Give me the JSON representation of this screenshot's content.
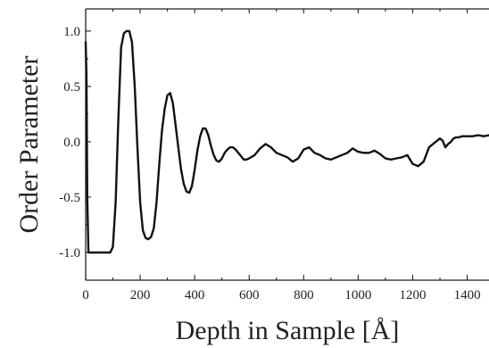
{
  "chart_data": {
    "type": "line",
    "title": "",
    "xlabel": "Depth in Sample [Å]",
    "ylabel": "Order Parameter",
    "xlim": [
      0,
      1480
    ],
    "ylim": [
      -1.25,
      1.2
    ],
    "x_ticks": [
      0,
      200,
      400,
      600,
      800,
      1000,
      1200,
      1400
    ],
    "y_ticks": [
      -1.0,
      -0.5,
      0.0,
      0.5,
      1.0
    ],
    "x_tick_labels": [
      "0",
      "200",
      "400",
      "600",
      "800",
      "1000",
      "1200",
      "1400"
    ],
    "y_tick_labels": [
      "-1.0",
      "-0.5",
      "0.0",
      "0.5",
      "1.0"
    ],
    "grid": false,
    "series": [
      {
        "x": [
          0,
          3,
          6,
          10,
          15,
          20,
          40,
          60,
          80,
          90,
          100,
          110,
          120,
          130,
          140,
          150,
          160,
          170,
          180,
          190,
          200,
          210,
          220,
          230,
          240,
          250,
          260,
          270,
          280,
          290,
          300,
          310,
          320,
          330,
          340,
          350,
          360,
          370,
          380,
          390,
          400,
          410,
          420,
          430,
          440,
          450,
          460,
          470,
          480,
          490,
          500,
          510,
          520,
          530,
          540,
          550,
          560,
          570,
          580,
          590,
          600,
          620,
          640,
          660,
          680,
          700,
          720,
          740,
          760,
          780,
          800,
          820,
          840,
          860,
          880,
          900,
          920,
          940,
          960,
          980,
          1000,
          1020,
          1040,
          1060,
          1080,
          1100,
          1120,
          1140,
          1160,
          1180,
          1200,
          1220,
          1240,
          1260,
          1280,
          1300,
          1310,
          1320,
          1330,
          1340,
          1350,
          1360,
          1370,
          1380,
          1400,
          1420,
          1440,
          1460,
          1480
        ],
        "y": [
          0.9,
          0.6,
          -0.5,
          -1.0,
          -1.0,
          -1.0,
          -1.0,
          -1.0,
          -1.0,
          -1.0,
          -0.95,
          -0.55,
          0.2,
          0.85,
          0.98,
          1.0,
          1.0,
          0.9,
          0.5,
          -0.05,
          -0.55,
          -0.8,
          -0.87,
          -0.88,
          -0.86,
          -0.78,
          -0.55,
          -0.2,
          0.1,
          0.3,
          0.42,
          0.44,
          0.35,
          0.15,
          -0.05,
          -0.25,
          -0.38,
          -0.45,
          -0.46,
          -0.4,
          -0.25,
          -0.08,
          0.05,
          0.12,
          0.12,
          0.06,
          -0.04,
          -0.12,
          -0.17,
          -0.18,
          -0.15,
          -0.1,
          -0.07,
          -0.05,
          -0.05,
          -0.07,
          -0.1,
          -0.13,
          -0.16,
          -0.16,
          -0.15,
          -0.12,
          -0.06,
          -0.02,
          -0.05,
          -0.1,
          -0.12,
          -0.14,
          -0.18,
          -0.15,
          -0.07,
          -0.05,
          -0.1,
          -0.12,
          -0.15,
          -0.16,
          -0.14,
          -0.12,
          -0.1,
          -0.06,
          -0.09,
          -0.1,
          -0.1,
          -0.08,
          -0.11,
          -0.15,
          -0.16,
          -0.15,
          -0.14,
          -0.12,
          -0.2,
          -0.22,
          -0.18,
          -0.05,
          -0.01,
          0.03,
          0.01,
          -0.05,
          -0.02,
          0.0,
          0.03,
          0.04,
          0.04,
          0.05,
          0.05,
          0.05,
          0.06,
          0.05,
          0.06
        ]
      }
    ]
  }
}
